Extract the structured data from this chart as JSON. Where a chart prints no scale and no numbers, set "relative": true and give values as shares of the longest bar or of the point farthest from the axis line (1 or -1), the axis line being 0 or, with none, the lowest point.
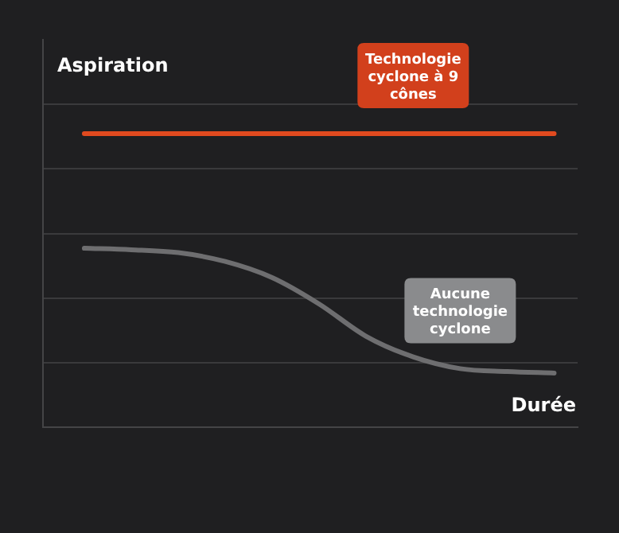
{
  "chart_data": {
    "type": "line",
    "relative": true,
    "ylabel": "Aspiration",
    "xlabel": "Durée",
    "grid": "y",
    "legend": false,
    "marker": "none",
    "line_style": "solid",
    "categories": [
      null,
      null,
      null,
      null,
      null,
      null,
      null,
      null,
      null,
      null,
      null
    ],
    "series": [
      {
        "name": "Technologie cyclone à 9 cônes",
        "color": "#e04a1f",
        "values": [
          1,
          1,
          1,
          1,
          1,
          1,
          1,
          1,
          1,
          1,
          1
        ]
      },
      {
        "name": "Aucune technologie cyclone",
        "color": "#6e6e70",
        "values": [
          0.61,
          0.605,
          0.595,
          0.565,
          0.51,
          0.42,
          0.31,
          0.24,
          0.2,
          0.19,
          0.185
        ]
      }
    ]
  }
}
